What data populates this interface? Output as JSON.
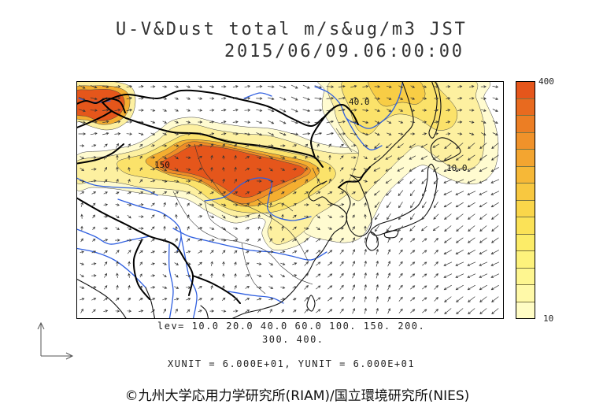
{
  "title": {
    "line1": "U-V&Dust total m/s&ug/m3 JST",
    "line2": "2015/06/09.06:00:00"
  },
  "map": {
    "contour_labels": [
      "40.0",
      "10.0",
      "150"
    ],
    "colors": {
      "coastline": "#111111",
      "river": "#2f5fe0",
      "wind_vector": "#333333"
    },
    "fill_levels": [
      "#fffbd0",
      "#fdf0a0",
      "#fbe26a",
      "#f8cd45",
      "#f4ae30",
      "#ef8b26",
      "#ea6e20",
      "#e5561b"
    ]
  },
  "colorbar": {
    "max_label": "400",
    "min_label": "10",
    "colors": [
      "#e5561b",
      "#e86a1f",
      "#ec7e24",
      "#f0922a",
      "#f3a530",
      "#f6b837",
      "#f8c840",
      "#fad64a",
      "#fbe257",
      "#fcec68",
      "#fdf27c",
      "#fef690",
      "#fff9a8",
      "#fffcc4"
    ]
  },
  "contour_levels": {
    "line1": "lev= 10.0 20.0 40.0 60.0 100. 150. 200.",
    "line2": "300. 400."
  },
  "vector_units": "XUNIT = 6.000E+01, YUNIT = 6.000E+01",
  "credit": "©九州大学応用力学研究所(RIAM)/国立環境研究所(NIES)"
}
